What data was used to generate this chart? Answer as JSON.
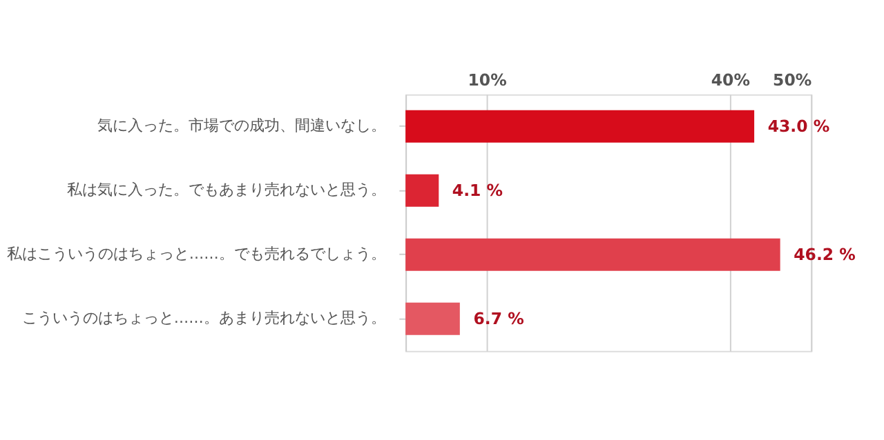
{
  "chart_data": {
    "type": "bar",
    "orientation": "horizontal",
    "categories": [
      "気に入った。市場での成功、間違いなし。",
      "私は気に入った。でもあまり売れないと思う。",
      "私はこういうのはちょっと……。でも売れるでしょう。",
      "こういうのはちょっと……。あまり売れないと思う。"
    ],
    "values": [
      43.0,
      4.1,
      46.2,
      6.7
    ],
    "colors": [
      "#d70c1b",
      "#dc2533",
      "#e0404c",
      "#e45862"
    ],
    "value_labels": [
      "43.0 %",
      "4.1 %",
      "46.2 %",
      "6.7 %"
    ],
    "xlim": [
      0,
      50
    ],
    "xticks": [
      {
        "value": 10,
        "label": "10%"
      },
      {
        "value": 40,
        "label": "40%"
      },
      {
        "value": 50,
        "label": "50%"
      }
    ],
    "grid": "x"
  }
}
